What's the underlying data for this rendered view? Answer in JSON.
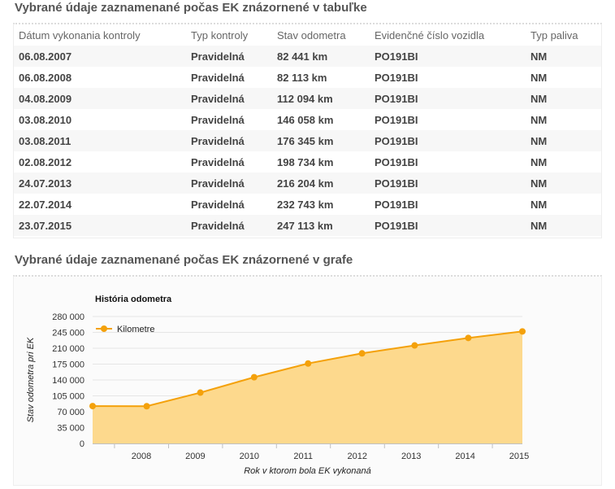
{
  "table_section": {
    "title": "Vybrané údaje zaznamenané počas EK znázornené v tabuľke",
    "headers": [
      "Dátum vykonania kontroly",
      "Typ kontroly",
      "Stav odometra",
      "Evidenčné číslo vozidla",
      "Typ paliva"
    ],
    "rows": [
      [
        "06.08.2007",
        "Pravidelná",
        "82 441 km",
        "PO191BI",
        "NM"
      ],
      [
        "06.08.2008",
        "Pravidelná",
        "82 113 km",
        "PO191BI",
        "NM"
      ],
      [
        "04.08.2009",
        "Pravidelná",
        "112 094 km",
        "PO191BI",
        "NM"
      ],
      [
        "03.08.2010",
        "Pravidelná",
        "146 058 km",
        "PO191BI",
        "NM"
      ],
      [
        "03.08.2011",
        "Pravidelná",
        "176 345 km",
        "PO191BI",
        "NM"
      ],
      [
        "02.08.2012",
        "Pravidelná",
        "198 734 km",
        "PO191BI",
        "NM"
      ],
      [
        "24.07.2013",
        "Pravidelná",
        "216 204 km",
        "PO191BI",
        "NM"
      ],
      [
        "22.07.2014",
        "Pravidelná",
        "232 743 km",
        "PO191BI",
        "NM"
      ],
      [
        "23.07.2015",
        "Pravidelná",
        "247 113 km",
        "PO191BI",
        "NM"
      ]
    ]
  },
  "chart_section": {
    "title": "Vybrané údaje zaznamenané počas EK znázornené v grafe"
  },
  "chart_data": {
    "type": "area",
    "title": "História odometra",
    "xlabel": "Rok v ktorom bola EK vykonaná",
    "ylabel": "Stav odometra pri EK",
    "x_ticks": [
      "2008",
      "2009",
      "2010",
      "2011",
      "2012",
      "2013",
      "2014",
      "2015"
    ],
    "y_ticks": [
      "0",
      "35 000",
      "70 000",
      "105 000",
      "140 000",
      "175 000",
      "210 000",
      "245 000",
      "280 000"
    ],
    "ylim": [
      0,
      280000
    ],
    "legend": "top-left",
    "grid": true,
    "series": [
      {
        "name": "Kilometre",
        "color": "#f4a10b",
        "fill": "#fdd98d",
        "x": [
          "2007-08-06",
          "2008-08-06",
          "2009-08-04",
          "2010-08-03",
          "2011-08-03",
          "2012-08-02",
          "2013-07-24",
          "2014-07-22",
          "2015-07-23"
        ],
        "values": [
          82441,
          82113,
          112094,
          146058,
          176345,
          198734,
          216204,
          232743,
          247113
        ]
      }
    ]
  }
}
